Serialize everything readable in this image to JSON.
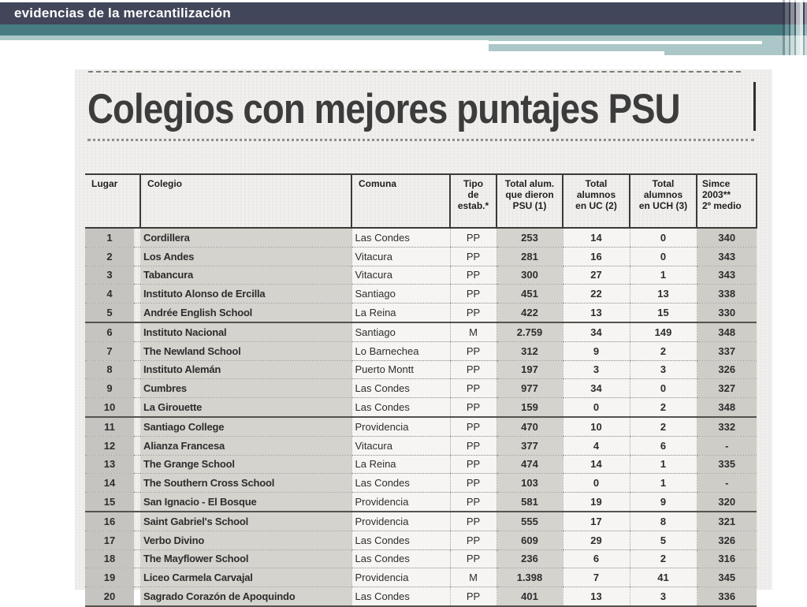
{
  "slide_header": {
    "title": "evidencias de la mercantilización"
  },
  "colors": {
    "slate": "#41465a",
    "teal": "#477d82",
    "light_teal": "#abc7c8",
    "clip_bg": "#f1f0ee",
    "shade": "#d5d3ce",
    "shade_dark": "#c6c4c0",
    "shade_simce": "#cfcdc8",
    "light_cell": "#f6f5f3"
  },
  "clipping": {
    "title": "Colegios con mejores puntajes PSU",
    "table": {
      "columns": [
        {
          "key": "lugar",
          "label": "Lugar"
        },
        {
          "key": "colegio",
          "label": "Colegio"
        },
        {
          "key": "comuna",
          "label": "Comuna"
        },
        {
          "key": "tipo",
          "label": "Tipo\nde\nestab.*"
        },
        {
          "key": "psu",
          "label": "Total alum.\nque dieron\nPSU (1)"
        },
        {
          "key": "uc",
          "label": "Total\nalumnos\nen UC (2)"
        },
        {
          "key": "uch",
          "label": "Total\nalumnos\nen UCH (3)"
        },
        {
          "key": "simce",
          "label": "Simce\n2003**\n2º medio"
        }
      ],
      "rows": [
        [
          "1",
          "Cordillera",
          "Las Condes",
          "PP",
          "253",
          "14",
          "0",
          "340"
        ],
        [
          "2",
          "Los Andes",
          "Vitacura",
          "PP",
          "281",
          "16",
          "0",
          "343"
        ],
        [
          "3",
          "Tabancura",
          "Vitacura",
          "PP",
          "300",
          "27",
          "1",
          "343"
        ],
        [
          "4",
          "Instituto Alonso de Ercilla",
          "Santiago",
          "PP",
          "451",
          "22",
          "13",
          "338"
        ],
        [
          "5",
          "Andrée English School",
          "La Reina",
          "PP",
          "422",
          "13",
          "15",
          "330"
        ],
        [
          "6",
          "Instituto Nacional",
          "Santiago",
          "M",
          "2.759",
          "34",
          "149",
          "348"
        ],
        [
          "7",
          "The Newland School",
          "Lo Barnechea",
          "PP",
          "312",
          "9",
          "2",
          "337"
        ],
        [
          "8",
          "Instituto Alemán",
          "Puerto Montt",
          "PP",
          "197",
          "3",
          "3",
          "326"
        ],
        [
          "9",
          "Cumbres",
          "Las Condes",
          "PP",
          "977",
          "34",
          "0",
          "327"
        ],
        [
          "10",
          "La Girouette",
          "Las Condes",
          "PP",
          "159",
          "0",
          "2",
          "348"
        ],
        [
          "11",
          "Santiago College",
          "Providencia",
          "PP",
          "470",
          "10",
          "2",
          "332"
        ],
        [
          "12",
          "Alianza Francesa",
          "Vitacura",
          "PP",
          "377",
          "4",
          "6",
          "-"
        ],
        [
          "13",
          "The Grange School",
          "La Reina",
          "PP",
          "474",
          "14",
          "1",
          "335"
        ],
        [
          "14",
          "The Southern Cross School",
          "Las Condes",
          "PP",
          "103",
          "0",
          "1",
          "-"
        ],
        [
          "15",
          "San Ignacio - El Bosque",
          "Providencia",
          "PP",
          "581",
          "19",
          "9",
          "320"
        ],
        [
          "16",
          "Saint Gabriel's School",
          "Providencia",
          "PP",
          "555",
          "17",
          "8",
          "321"
        ],
        [
          "17",
          "Verbo Divino",
          "Las Condes",
          "PP",
          "609",
          "29",
          "5",
          "326"
        ],
        [
          "18",
          "The Mayflower School",
          "Las Condes",
          "PP",
          "236",
          "6",
          "2",
          "316"
        ],
        [
          "19",
          "Liceo Carmela Carvajal",
          "Providencia",
          "M",
          "1.398",
          "7",
          "41",
          "345"
        ],
        [
          "20",
          "Sagrado Corazón de Apoquindo",
          "Las Condes",
          "PP",
          "401",
          "13",
          "3",
          "336"
        ]
      ]
    }
  }
}
